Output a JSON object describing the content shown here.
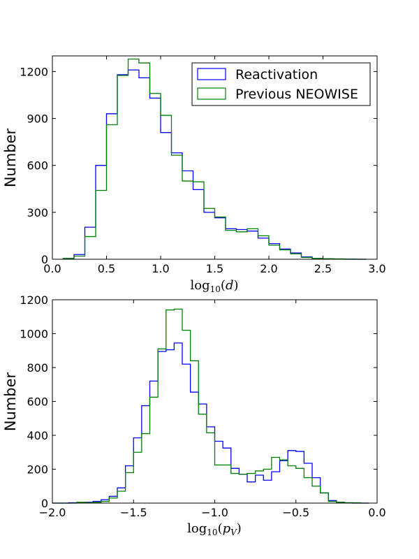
{
  "chart_data": [
    {
      "type": "step-histogram",
      "title": "",
      "xlabel": {
        "base": "log",
        "sub": "10",
        "arg": "d"
      },
      "ylabel": "Number",
      "xlim": [
        0.0,
        3.0
      ],
      "ylim": [
        0,
        1300
      ],
      "xticks": [
        0.0,
        0.5,
        1.0,
        1.5,
        2.0,
        2.5,
        3.0
      ],
      "xtick_labels": [
        "0.0",
        "0.5",
        "1.0",
        "1.5",
        "2.0",
        "2.5",
        "3.0"
      ],
      "yticks": [
        0,
        300,
        600,
        900,
        1200
      ],
      "ytick_labels": [
        "0",
        "300",
        "600",
        "900",
        "1200"
      ],
      "legend": {
        "placement": "top-right",
        "entries": [
          "Reactivation",
          "Previous NEOWISE"
        ]
      },
      "bin_edges": [
        0.1,
        0.2,
        0.3,
        0.4,
        0.5,
        0.6,
        0.7,
        0.8,
        0.9,
        1.0,
        1.1,
        1.2,
        1.3,
        1.4,
        1.5,
        1.6,
        1.7,
        1.8,
        1.9,
        2.0,
        2.1,
        2.2,
        2.3,
        2.4,
        2.5,
        2.6,
        2.7,
        2.8,
        2.9
      ],
      "series": [
        {
          "name": "Reactivation",
          "color": "#0000ff",
          "values": [
            5,
            30,
            205,
            600,
            930,
            1180,
            1210,
            1160,
            1030,
            810,
            680,
            565,
            445,
            300,
            265,
            195,
            190,
            180,
            135,
            100,
            65,
            40,
            15,
            5,
            2,
            1,
            0,
            0
          ]
        },
        {
          "name": "Previous NEOWISE",
          "color": "#008000",
          "values": [
            5,
            20,
            145,
            440,
            860,
            1175,
            1280,
            1255,
            1060,
            920,
            665,
            500,
            495,
            325,
            270,
            185,
            175,
            195,
            150,
            90,
            60,
            35,
            12,
            5,
            3,
            2,
            1,
            0
          ]
        }
      ]
    },
    {
      "type": "step-histogram",
      "title": "",
      "xlabel": {
        "base": "log",
        "sub": "10",
        "arg": "p",
        "argsub": "V"
      },
      "ylabel": "Number",
      "xlim": [
        -2.0,
        0.0
      ],
      "ylim": [
        0,
        1200
      ],
      "xticks": [
        -2.0,
        -1.5,
        -1.0,
        -0.5,
        0.0
      ],
      "xtick_labels": [
        "−2.0",
        "−1.5",
        "−1.0",
        "−0.5",
        "0.0"
      ],
      "yticks": [
        0,
        200,
        400,
        600,
        800,
        1000,
        1200
      ],
      "ytick_labels": [
        "0",
        "200",
        "400",
        "600",
        "800",
        "1000",
        "1200"
      ],
      "bin_edges": [
        -2.0,
        -1.95,
        -1.9,
        -1.85,
        -1.8,
        -1.75,
        -1.7,
        -1.65,
        -1.6,
        -1.55,
        -1.5,
        -1.45,
        -1.4,
        -1.35,
        -1.3,
        -1.25,
        -1.2,
        -1.15,
        -1.1,
        -1.05,
        -1.0,
        -0.95,
        -0.9,
        -0.85,
        -0.8,
        -0.75,
        -0.7,
        -0.65,
        -0.6,
        -0.55,
        -0.5,
        -0.45,
        -0.4,
        -0.35,
        -0.3,
        -0.25,
        -0.2,
        -0.15,
        -0.1,
        -0.05
      ],
      "series": [
        {
          "name": "Reactivation",
          "color": "#0000ff",
          "values": [
            0,
            0,
            2,
            3,
            5,
            10,
            20,
            40,
            90,
            220,
            385,
            575,
            720,
            895,
            905,
            945,
            820,
            655,
            585,
            450,
            365,
            325,
            205,
            170,
            125,
            165,
            135,
            185,
            250,
            310,
            305,
            235,
            150,
            60,
            15,
            5,
            2,
            0,
            0
          ]
        },
        {
          "name": "Previous NEOWISE",
          "color": "#008000",
          "values": [
            0,
            0,
            0,
            5,
            3,
            5,
            10,
            30,
            70,
            180,
            300,
            410,
            625,
            910,
            1140,
            1145,
            1020,
            840,
            525,
            415,
            225,
            225,
            175,
            170,
            175,
            190,
            200,
            270,
            255,
            220,
            205,
            150,
            100,
            60,
            10,
            5,
            2,
            2,
            0
          ]
        }
      ]
    }
  ]
}
